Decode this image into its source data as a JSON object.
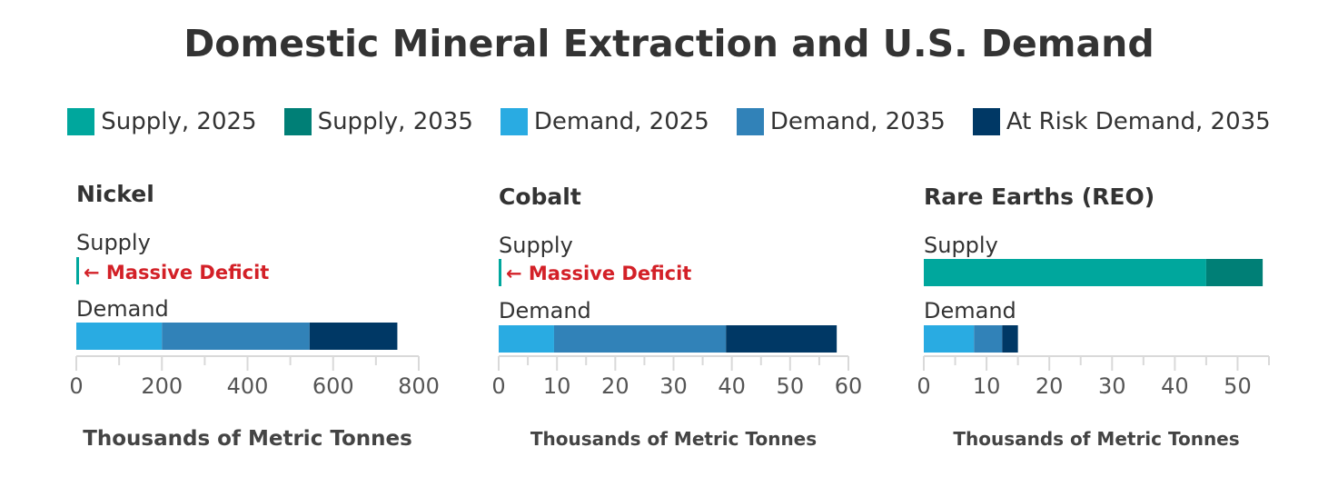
{
  "title": "Domestic Mineral Extraction and U.S. Demand",
  "legend": [
    {
      "label": "Supply, 2025",
      "color": "#00a79d"
    },
    {
      "label": "Supply, 2035",
      "color": "#007f76"
    },
    {
      "label": "Demand, 2025",
      "color": "#29abe2"
    },
    {
      "label": "Demand, 2035",
      "color": "#3182b8"
    },
    {
      "label": "At Risk Demand, 2035",
      "color": "#003865"
    }
  ],
  "annotation_color": "#d32027",
  "chart_data": [
    {
      "type": "bar",
      "title": "Nickel",
      "xlabel": "Thousands of Metric Tonnes",
      "xlim": [
        0,
        800
      ],
      "ticks": [
        0,
        200,
        400,
        600,
        800
      ],
      "categories": [
        "Supply",
        "Demand"
      ],
      "supply": {
        "2025": 0,
        "2035": 0
      },
      "demand": {
        "2025": 200,
        "2035": 545,
        "at_risk_2035": 750
      },
      "annotation": "← Massive Deficit"
    },
    {
      "type": "bar",
      "title": "Cobalt",
      "xlabel": "Thousands of Metric Tonnes",
      "xlim": [
        0,
        60
      ],
      "ticks": [
        0,
        10,
        20,
        30,
        40,
        50,
        60
      ],
      "categories": [
        "Supply",
        "Demand"
      ],
      "supply": {
        "2025": 0,
        "2035": 0
      },
      "demand": {
        "2025": 9.5,
        "2035": 39,
        "at_risk_2035": 58
      },
      "annotation": "← Massive Deficit"
    },
    {
      "type": "bar",
      "title": "Rare Earths (REO)",
      "xlabel": "Thousands of Metric Tonnes",
      "xlim": [
        0,
        55
      ],
      "ticks": [
        0,
        10,
        20,
        30,
        40,
        50
      ],
      "categories": [
        "Supply",
        "Demand"
      ],
      "supply": {
        "2025": 45,
        "2035": 54
      },
      "demand": {
        "2025": 8,
        "2035": 12.5,
        "at_risk_2035": 15
      },
      "annotation": ""
    }
  ]
}
